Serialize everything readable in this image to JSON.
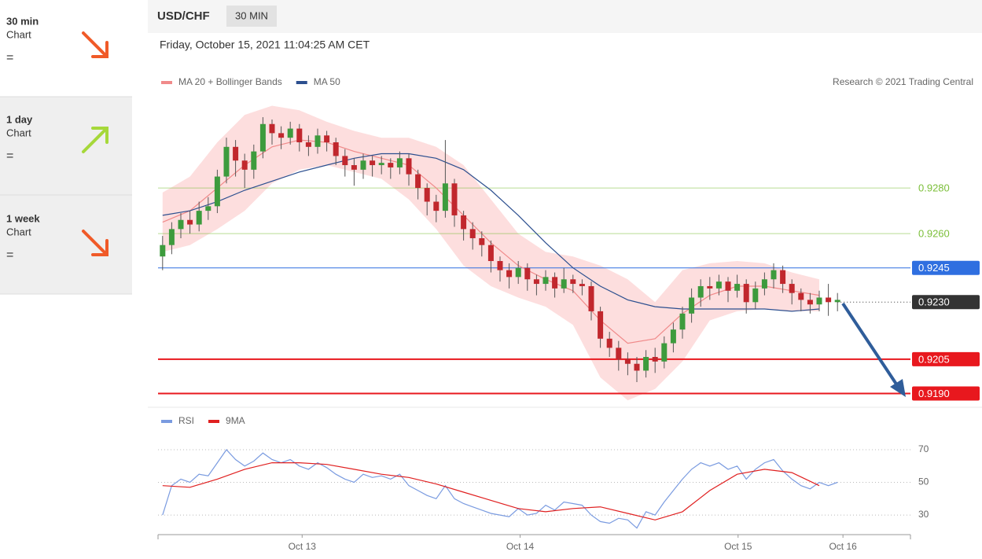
{
  "sidebar": [
    {
      "period": "30 min",
      "label": "Chart",
      "signal": "="
    },
    {
      "period": "1 day",
      "label": "Chart",
      "signal": "="
    },
    {
      "period": "1 week",
      "label": "Chart",
      "signal": "="
    }
  ],
  "header": {
    "symbol": "USD/CHF",
    "interval": "30 MIN",
    "timestamp": "Friday, October 15, 2021 11:04:25 AM CET",
    "credit": "Research © 2021 Trading Central"
  },
  "chart_data": [
    {
      "type": "candlestick",
      "up_color": "#3d9b3d",
      "down_color": "#c1272d",
      "ohlc": [
        [
          0.925,
          0.9259,
          0.9244,
          0.9255
        ],
        [
          0.9255,
          0.9265,
          0.9251,
          0.9262
        ],
        [
          0.9262,
          0.9269,
          0.9258,
          0.9266
        ],
        [
          0.9266,
          0.927,
          0.926,
          0.9264
        ],
        [
          0.9264,
          0.9274,
          0.9261,
          0.927
        ],
        [
          0.927,
          0.9276,
          0.9266,
          0.9272
        ],
        [
          0.9272,
          0.9288,
          0.9269,
          0.9285
        ],
        [
          0.9285,
          0.9302,
          0.9282,
          0.9298
        ],
        [
          0.9298,
          0.9301,
          0.9285,
          0.9292
        ],
        [
          0.9292,
          0.9295,
          0.928,
          0.9288
        ],
        [
          0.9288,
          0.9299,
          0.9284,
          0.9296
        ],
        [
          0.9296,
          0.9311,
          0.9293,
          0.9308
        ],
        [
          0.9308,
          0.931,
          0.9299,
          0.9304
        ],
        [
          0.9304,
          0.9307,
          0.9297,
          0.9302
        ],
        [
          0.9302,
          0.9309,
          0.9299,
          0.9306
        ],
        [
          0.9306,
          0.9308,
          0.9296,
          0.93
        ],
        [
          0.93,
          0.9303,
          0.9294,
          0.9298
        ],
        [
          0.9298,
          0.9306,
          0.9295,
          0.9303
        ],
        [
          0.9303,
          0.9305,
          0.9296,
          0.93
        ],
        [
          0.93,
          0.9302,
          0.929,
          0.9294
        ],
        [
          0.9294,
          0.9297,
          0.9285,
          0.929
        ],
        [
          0.929,
          0.9293,
          0.9281,
          0.9288
        ],
        [
          0.9288,
          0.9295,
          0.9284,
          0.9292
        ],
        [
          0.9292,
          0.9294,
          0.9285,
          0.929
        ],
        [
          0.929,
          0.9294,
          0.9286,
          0.9291
        ],
        [
          0.9291,
          0.9293,
          0.9284,
          0.9289
        ],
        [
          0.9289,
          0.9296,
          0.9286,
          0.9293
        ],
        [
          0.9293,
          0.9295,
          0.9281,
          0.9286
        ],
        [
          0.9286,
          0.9288,
          0.9275,
          0.928
        ],
        [
          0.928,
          0.9282,
          0.9268,
          0.9274
        ],
        [
          0.9274,
          0.9277,
          0.9265,
          0.927
        ],
        [
          0.927,
          0.9301,
          0.9267,
          0.9282
        ],
        [
          0.9282,
          0.9284,
          0.9263,
          0.9268
        ],
        [
          0.9268,
          0.927,
          0.9257,
          0.9262
        ],
        [
          0.9262,
          0.9265,
          0.9253,
          0.9258
        ],
        [
          0.9258,
          0.9261,
          0.925,
          0.9255
        ],
        [
          0.9255,
          0.9257,
          0.9243,
          0.9248
        ],
        [
          0.9248,
          0.925,
          0.9239,
          0.9244
        ],
        [
          0.9244,
          0.9247,
          0.9236,
          0.9241
        ],
        [
          0.9241,
          0.9248,
          0.9238,
          0.9245
        ],
        [
          0.9245,
          0.9247,
          0.9235,
          0.924
        ],
        [
          0.924,
          0.9242,
          0.9233,
          0.9238
        ],
        [
          0.9238,
          0.9244,
          0.9235,
          0.9241
        ],
        [
          0.9241,
          0.9243,
          0.9232,
          0.9236
        ],
        [
          0.9236,
          0.9245,
          0.9234,
          0.924
        ],
        [
          0.924,
          0.9242,
          0.9234,
          0.9238
        ],
        [
          0.9238,
          0.924,
          0.9233,
          0.9237
        ],
        [
          0.9237,
          0.9239,
          0.9222,
          0.9226
        ],
        [
          0.9226,
          0.9228,
          0.921,
          0.9214
        ],
        [
          0.9214,
          0.9217,
          0.9206,
          0.921
        ],
        [
          0.921,
          0.9213,
          0.92,
          0.9205
        ],
        [
          0.9205,
          0.9208,
          0.9198,
          0.9203
        ],
        [
          0.9203,
          0.9206,
          0.9195,
          0.92
        ],
        [
          0.92,
          0.9209,
          0.9197,
          0.9206
        ],
        [
          0.9206,
          0.921,
          0.9199,
          0.9204
        ],
        [
          0.9204,
          0.9215,
          0.9201,
          0.9212
        ],
        [
          0.9212,
          0.9221,
          0.9208,
          0.9218
        ],
        [
          0.9218,
          0.9228,
          0.9214,
          0.9225
        ],
        [
          0.9225,
          0.9236,
          0.9221,
          0.9232
        ],
        [
          0.9232,
          0.924,
          0.9228,
          0.9237
        ],
        [
          0.9237,
          0.9241,
          0.9231,
          0.9236
        ],
        [
          0.9236,
          0.9242,
          0.9233,
          0.9239
        ],
        [
          0.9239,
          0.9241,
          0.923,
          0.9235
        ],
        [
          0.9235,
          0.9242,
          0.9232,
          0.9238
        ],
        [
          0.9238,
          0.924,
          0.9225,
          0.923
        ],
        [
          0.923,
          0.9239,
          0.9227,
          0.9236
        ],
        [
          0.9236,
          0.9243,
          0.9233,
          0.924
        ],
        [
          0.924,
          0.9247,
          0.9236,
          0.9244
        ],
        [
          0.9244,
          0.9246,
          0.9234,
          0.9238
        ],
        [
          0.9238,
          0.924,
          0.9229,
          0.9234
        ],
        [
          0.9234,
          0.9236,
          0.9226,
          0.9231
        ],
        [
          0.9231,
          0.9234,
          0.9225,
          0.9229
        ],
        [
          0.9229,
          0.9235,
          0.9226,
          0.9232
        ],
        [
          0.9232,
          0.9238,
          0.9224,
          0.923
        ],
        [
          0.923,
          0.9234,
          0.9226,
          0.9231
        ]
      ],
      "xlim": [
        -0.5,
        82
      ],
      "xticks": [
        {
          "value": 15.3,
          "label": "Oct 13"
        },
        {
          "value": 39.2,
          "label": "Oct 14"
        },
        {
          "value": 63.1,
          "label": "Oct 15"
        },
        {
          "value": 74.6,
          "label": "Oct 16"
        }
      ],
      "ylim": [
        0.9185,
        0.9321
      ],
      "series": [
        {
          "name": "MA 20 + Bollinger Bands",
          "color": "#f08a8a",
          "band_color": "#fddede",
          "x": [
            0,
            3,
            6,
            9,
            12,
            15,
            18,
            21,
            24,
            27,
            30,
            33,
            36,
            39,
            42,
            45,
            48,
            51,
            54,
            57,
            60,
            63,
            66,
            69,
            72
          ],
          "values": [
            0.9265,
            0.927,
            0.928,
            0.929,
            0.9298,
            0.9301,
            0.93,
            0.9296,
            0.9293,
            0.929,
            0.928,
            0.9268,
            0.9256,
            0.9246,
            0.924,
            0.9235,
            0.9222,
            0.9212,
            0.9214,
            0.9225,
            0.9233,
            0.9237,
            0.9237,
            0.9235,
            0.9233
          ],
          "upper": [
            0.9278,
            0.9285,
            0.93,
            0.9312,
            0.9316,
            0.9314,
            0.9309,
            0.9305,
            0.9302,
            0.9302,
            0.9298,
            0.929,
            0.9275,
            0.926,
            0.9252,
            0.925,
            0.9246,
            0.924,
            0.923,
            0.9244,
            0.9247,
            0.9248,
            0.9247,
            0.9243,
            0.924
          ],
          "lower": [
            0.9252,
            0.9255,
            0.9262,
            0.927,
            0.9282,
            0.9288,
            0.929,
            0.9287,
            0.9284,
            0.9275,
            0.9262,
            0.9246,
            0.9237,
            0.9232,
            0.9228,
            0.922,
            0.9197,
            0.9187,
            0.9192,
            0.9204,
            0.9222,
            0.9226,
            0.9227,
            0.9226,
            0.9226
          ]
        },
        {
          "name": "MA 50",
          "color": "#2c4f8f",
          "x": [
            0,
            3,
            6,
            9,
            12,
            15,
            18,
            21,
            24,
            27,
            30,
            33,
            36,
            39,
            42,
            45,
            48,
            51,
            54,
            57,
            60,
            63,
            66,
            69,
            72
          ],
          "values": [
            0.9268,
            0.927,
            0.9274,
            0.9279,
            0.9283,
            0.9287,
            0.929,
            0.9293,
            0.9295,
            0.9295,
            0.9293,
            0.9288,
            0.9279,
            0.9268,
            0.9256,
            0.9245,
            0.9237,
            0.9231,
            0.9228,
            0.9227,
            0.9227,
            0.9227,
            0.9227,
            0.9226,
            0.9227
          ]
        }
      ],
      "levels": [
        {
          "value": 0.928,
          "label": "0.9280",
          "color": "#7cbf3a",
          "boxed": false
        },
        {
          "value": 0.926,
          "label": "0.9260",
          "color": "#7cbf3a",
          "boxed": false
        },
        {
          "value": 0.9245,
          "label": "0.9245",
          "color": "#2f6fe0",
          "boxed": true
        },
        {
          "value": 0.923,
          "label": "0.9230",
          "color": "#333333",
          "boxed": true,
          "dotted": true
        },
        {
          "value": 0.9205,
          "label": "0.9205",
          "color": "#e8181e",
          "boxed": true
        },
        {
          "value": 0.919,
          "label": "0.9190",
          "color": "#e8181e",
          "boxed": true
        }
      ]
    },
    {
      "type": "line",
      "xlim": [
        -0.5,
        82
      ],
      "ylim": [
        18,
        83
      ],
      "yticks": [
        30,
        50,
        70
      ],
      "series": [
        {
          "name": "RSI",
          "color": "#7a9be0",
          "values": [
            30,
            48,
            52,
            50,
            55,
            54,
            62,
            70,
            64,
            60,
            63,
            68,
            64,
            62,
            64,
            60,
            58,
            62,
            59,
            55,
            52,
            50,
            55,
            53,
            54,
            52,
            55,
            48,
            45,
            42,
            40,
            48,
            40,
            37,
            35,
            33,
            31,
            30,
            29,
            34,
            30,
            31,
            36,
            33,
            38,
            37,
            36,
            30,
            26,
            25,
            28,
            27,
            22,
            32,
            30,
            38,
            45,
            52,
            58,
            62,
            60,
            62,
            58,
            60,
            52,
            58,
            62,
            64,
            57,
            52,
            48,
            46,
            50,
            48,
            50
          ]
        },
        {
          "name": "9MA",
          "color": "#e02020",
          "x": [
            0,
            3,
            6,
            9,
            12,
            15,
            18,
            21,
            24,
            27,
            30,
            33,
            36,
            39,
            42,
            45,
            48,
            51,
            54,
            57,
            60,
            63,
            66,
            69,
            72
          ],
          "values": [
            48,
            47,
            52,
            58,
            62,
            62,
            61,
            58,
            55,
            53,
            49,
            44,
            39,
            34,
            32,
            34,
            35,
            31,
            27,
            32,
            45,
            55,
            58,
            56,
            48
          ]
        }
      ]
    }
  ]
}
